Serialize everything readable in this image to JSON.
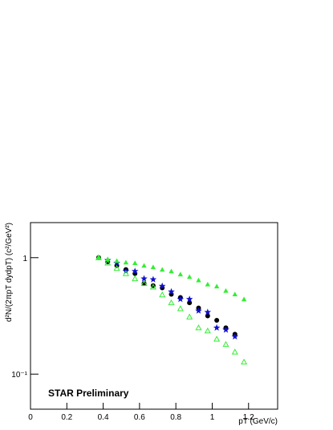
{
  "chart_data": {
    "type": "scatter",
    "annotation": "STAR Preliminary",
    "x_label": "pT (GeV/c)",
    "y_label": "d²N/(2πpT dydpT) (c²/GeV²)",
    "xlim": [
      0,
      1.36
    ],
    "ylim": [
      0.05,
      2
    ],
    "log_y": true,
    "xticks": [
      0,
      0.2,
      0.4,
      0.6,
      0.8,
      1,
      1.2
    ],
    "yticks": [
      {
        "value": 0.1,
        "label": "10⁻¹"
      },
      1
    ],
    "series": [
      {
        "marker": "circle",
        "color": "#000000",
        "x": [
          0.375,
          0.425,
          0.475,
          0.525,
          0.575,
          0.625,
          0.675,
          0.725,
          0.775,
          0.825,
          0.875,
          0.925,
          0.975,
          1.025,
          1.075,
          1.125
        ],
        "values": [
          1.0,
          0.92,
          0.855,
          0.79,
          0.73,
          0.6,
          0.575,
          0.55,
          0.485,
          0.455,
          0.41,
          0.37,
          0.316,
          0.29,
          0.25,
          0.22
        ]
      },
      {
        "marker": "star",
        "color": "#1010cc",
        "x": [
          0.425,
          0.475,
          0.525,
          0.575,
          0.625,
          0.675,
          0.725,
          0.775,
          0.825,
          0.875,
          0.925,
          0.975,
          1.025,
          1.075,
          1.125
        ],
        "values": [
          0.95,
          0.9,
          0.765,
          0.765,
          0.66,
          0.65,
          0.57,
          0.51,
          0.44,
          0.44,
          0.35,
          0.34,
          0.25,
          0.24,
          0.21
        ]
      },
      {
        "marker": "triangle",
        "color": "#33ee33",
        "x": [
          0.375,
          0.425,
          0.475,
          0.525,
          0.575,
          0.625,
          0.675,
          0.725,
          0.775,
          0.825,
          0.875,
          0.925,
          0.975,
          1.025,
          1.075,
          1.125,
          1.175
        ],
        "values": [
          1.0,
          0.97,
          0.94,
          0.91,
          0.9,
          0.855,
          0.83,
          0.79,
          0.765,
          0.72,
          0.685,
          0.64,
          0.59,
          0.567,
          0.52,
          0.485,
          0.44
        ]
      },
      {
        "marker": "triangle-open",
        "color": "#33ee33",
        "x": [
          0.375,
          0.425,
          0.475,
          0.525,
          0.575,
          0.625,
          0.675,
          0.725,
          0.775,
          0.825,
          0.875,
          0.925,
          0.975,
          1.025,
          1.075,
          1.125,
          1.175
        ],
        "values": [
          1.0,
          0.9,
          0.81,
          0.73,
          0.66,
          0.6,
          0.56,
          0.48,
          0.41,
          0.365,
          0.31,
          0.25,
          0.235,
          0.2,
          0.18,
          0.155,
          0.127
        ]
      }
    ]
  }
}
